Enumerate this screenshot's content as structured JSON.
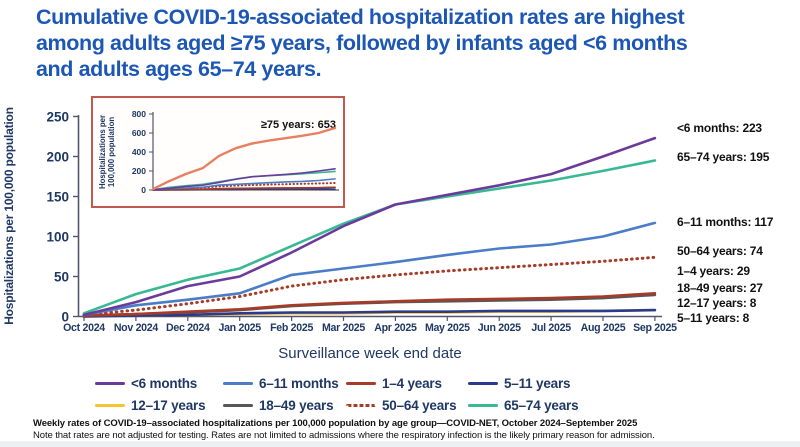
{
  "title": {
    "lines": [
      "Cumulative COVID-19-associated hospitalization rates are highest",
      "among adults aged ≥75 years, followed by infants aged <6 months",
      "and adults ages 65–74 years."
    ]
  },
  "colors": {
    "title_blue": "#1d57b5",
    "navy_text": "#1f3864",
    "axis": "#54556e",
    "inset_border": "#bf5a4d",
    "annotation_black": "#111111"
  },
  "chart_data": {
    "type": "line",
    "title": "Cumulative COVID-19-associated hospitalization rates by age group",
    "xlabel": "Surveillance week end date",
    "ylabel": "Hospitalizations per 100,000 population",
    "x_labels": [
      "Oct 2024",
      "Nov 2024",
      "Dec 2024",
      "Jan 2025",
      "Feb 2025",
      "Mar 2025",
      "Apr 2025",
      "May 2025",
      "Jun 2025",
      "Jul 2025",
      "Aug 2025",
      "Sep 2025"
    ],
    "ylim": [
      0,
      250
    ],
    "yticks": [
      0,
      50,
      100,
      150,
      200,
      250
    ],
    "grid": false,
    "legend_position": "bottom",
    "series": [
      {
        "name": "<6 months",
        "color": "#6b3a9b",
        "style": "solid",
        "end_value": 223,
        "values": [
          2,
          18,
          38,
          50,
          80,
          113,
          140,
          152,
          164,
          178,
          200,
          223
        ]
      },
      {
        "name": "6–11 months",
        "color": "#4a7cc7",
        "style": "solid",
        "end_value": 117,
        "values": [
          2,
          14,
          21,
          29,
          52,
          60,
          68,
          77,
          85,
          90,
          100,
          117
        ]
      },
      {
        "name": "1–4 years",
        "color": "#a63b28",
        "style": "solid",
        "end_value": 29,
        "values": [
          1,
          3,
          6,
          9,
          14,
          17,
          19,
          21,
          22,
          23,
          25,
          29
        ]
      },
      {
        "name": "5–11 years",
        "color": "#2b3a8c",
        "style": "solid",
        "end_value": 8,
        "values": [
          0,
          1,
          2,
          4,
          5,
          5,
          6,
          6,
          7,
          7,
          7,
          8
        ]
      },
      {
        "name": "12–17 years",
        "color": "#f4c431",
        "style": "solid",
        "end_value": 8,
        "values": [
          0,
          1,
          2,
          3,
          4,
          4,
          5,
          5,
          6,
          6,
          7,
          8
        ]
      },
      {
        "name": "18–49 years",
        "color": "#575757",
        "style": "solid",
        "end_value": 27,
        "values": [
          1,
          3,
          5,
          8,
          13,
          16,
          18,
          19,
          20,
          21,
          23,
          27
        ]
      },
      {
        "name": "50–64 years",
        "color": "#a63b28",
        "style": "dotted",
        "end_value": 74,
        "values": [
          2,
          8,
          16,
          25,
          38,
          46,
          52,
          57,
          61,
          65,
          69,
          74
        ]
      },
      {
        "name": "65–74 years",
        "color": "#38b893",
        "style": "solid",
        "end_value": 195,
        "values": [
          4,
          28,
          46,
          60,
          88,
          116,
          140,
          150,
          160,
          170,
          182,
          195
        ]
      }
    ],
    "right_labels": [
      "<6 months: 223",
      "65–74 years: 195",
      "6–11 months: 117",
      "50–64 years: 74",
      "1–4 years: 29",
      "18–49 years: 27",
      "12–17 years: 8",
      "5–11 years: 8"
    ],
    "inset": {
      "ylim": [
        0,
        800
      ],
      "yticks": [
        0,
        200,
        400,
        600,
        800
      ],
      "ylabel_line1": "Hospitalizations per",
      "ylabel_line2": "100,000 population",
      "annotation": "≥75 years: 653",
      "series": {
        "name": "≥75 years",
        "color": "#e87f63",
        "style": "solid",
        "end_value": 653,
        "values": [
          10,
          95,
          170,
          230,
          360,
          440,
          490,
          520,
          545,
          570,
          600,
          653
        ]
      }
    }
  },
  "legend": {
    "rows": [
      [
        "<6 months",
        "6–11 months",
        "1–4 years",
        "5–11 years"
      ],
      [
        "12–17 years",
        "18–49 years",
        "50–64 years",
        "65–74 years"
      ]
    ]
  },
  "footnotes": [
    "Weekly rates of COVID-19–associated hospitalizations per 100,000 population by age group—COVID-NET, October 2024–September 2025",
    "Note that rates are not adjusted for testing. Rates are not limited to admissions where the respiratory infection is the likely primary reason for admission."
  ]
}
